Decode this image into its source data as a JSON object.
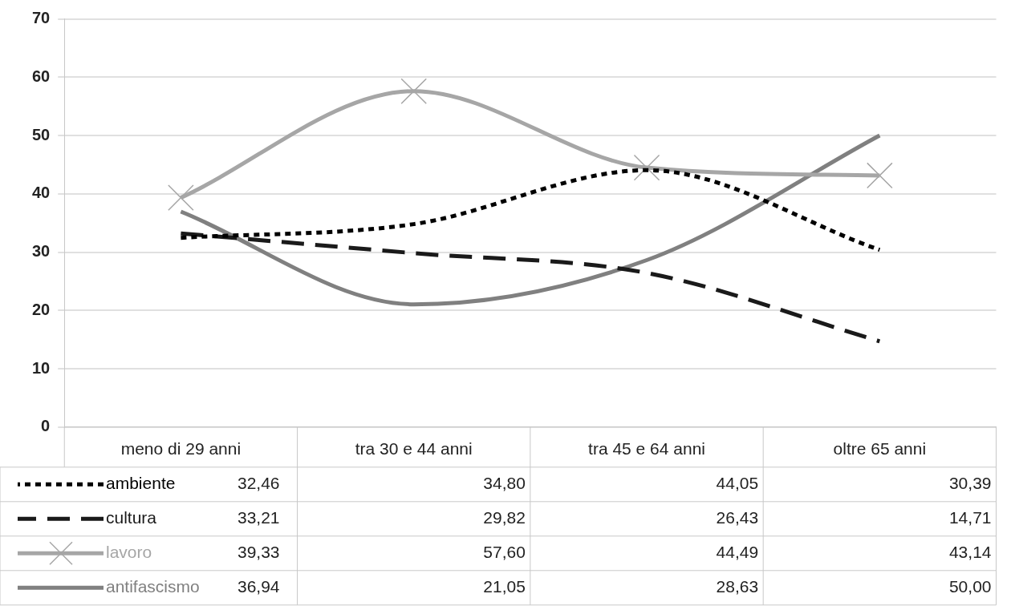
{
  "chart_data": {
    "type": "line",
    "categories": [
      "meno di 29 anni",
      "tra 30 e 44 anni",
      "tra 45 e 64 anni",
      "oltre 65 anni"
    ],
    "series": [
      {
        "name": "ambiente",
        "color": "#000000",
        "line_style": "dotted",
        "marker": "none",
        "values": [
          32.46,
          34.8,
          44.05,
          30.39
        ],
        "value_labels": [
          "32,46",
          "34,80",
          "44,05",
          "30,39"
        ]
      },
      {
        "name": "cultura",
        "color": "#1a1a1a",
        "line_style": "dashed",
        "marker": "none",
        "values": [
          33.21,
          29.82,
          26.43,
          14.71
        ],
        "value_labels": [
          "33,21",
          "29,82",
          "26,43",
          "14,71"
        ]
      },
      {
        "name": "lavoro",
        "color": "#a6a6a6",
        "line_style": "solid",
        "marker": "cross",
        "values": [
          39.33,
          57.6,
          44.49,
          43.14
        ],
        "value_labels": [
          "39,33",
          "57,60",
          "44,49",
          "43,14"
        ]
      },
      {
        "name": "antifascismo",
        "color": "#808080",
        "line_style": "solid",
        "marker": "none",
        "values": [
          36.94,
          21.05,
          28.63,
          50
        ],
        "value_labels": [
          "36,94",
          "21,05",
          "28,63",
          "50,00"
        ]
      }
    ],
    "ylim": [
      0,
      70
    ],
    "yticks": [
      0,
      10,
      20,
      30,
      40,
      50,
      60,
      70
    ],
    "grid": "y",
    "legend": "bottom"
  }
}
